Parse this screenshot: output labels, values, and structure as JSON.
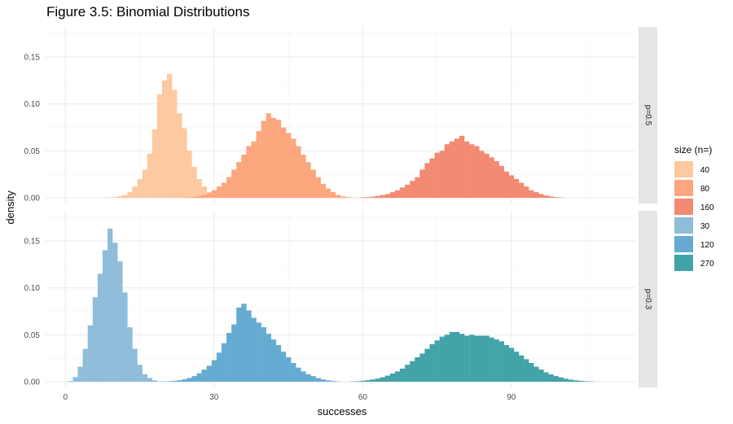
{
  "chart_data": {
    "type": "bar",
    "title": "Figure 3.5: Binomial Distributions",
    "xlabel": "successes",
    "ylabel": "density",
    "xlim": [
      -4,
      115
    ],
    "ylim": [
      -0.006,
      0.182
    ],
    "x_ticks": [
      0,
      30,
      60,
      90
    ],
    "y_ticks": [
      0.0,
      0.05,
      0.1,
      0.15
    ],
    "y_tick_labels": [
      "0.00",
      "0.05",
      "0.10",
      "0.15"
    ],
    "grid": true,
    "legend_title": "size (n=)",
    "legend_position": "right",
    "panels": [
      {
        "label": "p=0.5",
        "series": [
          {
            "name": "40",
            "color": "#FDC9A0",
            "bins": [
              [
                8,
                0.0002
              ],
              [
                9,
                0.0004
              ],
              [
                10,
                0.0008
              ],
              [
                11,
                0.0018
              ],
              [
                12,
                0.003
              ],
              [
                13,
                0.006
              ],
              [
                14,
                0.012
              ],
              [
                15,
                0.02
              ],
              [
                16,
                0.03
              ],
              [
                17,
                0.047
              ],
              [
                18,
                0.073
              ],
              [
                19,
                0.11
              ],
              [
                20,
                0.125
              ],
              [
                21,
                0.132
              ],
              [
                22,
                0.115
              ],
              [
                23,
                0.09
              ],
              [
                24,
                0.074
              ],
              [
                25,
                0.05
              ],
              [
                26,
                0.033
              ],
              [
                27,
                0.02
              ],
              [
                28,
                0.012
              ],
              [
                29,
                0.006
              ],
              [
                30,
                0.003
              ],
              [
                31,
                0.0012
              ],
              [
                32,
                0.0004
              ]
            ]
          },
          {
            "name": "80",
            "color": "#FCA67D",
            "bins": [
              [
                24,
                0.0002
              ],
              [
                25,
                0.0005
              ],
              [
                26,
                0.001
              ],
              [
                27,
                0.0018
              ],
              [
                28,
                0.003
              ],
              [
                29,
                0.005
              ],
              [
                30,
                0.008
              ],
              [
                31,
                0.012
              ],
              [
                32,
                0.016
              ],
              [
                33,
                0.022
              ],
              [
                34,
                0.03
              ],
              [
                35,
                0.038
              ],
              [
                36,
                0.046
              ],
              [
                37,
                0.055
              ],
              [
                38,
                0.06
              ],
              [
                39,
                0.071
              ],
              [
                40,
                0.082
              ],
              [
                41,
                0.09
              ],
              [
                42,
                0.085
              ],
              [
                43,
                0.083
              ],
              [
                44,
                0.075
              ],
              [
                45,
                0.069
              ],
              [
                46,
                0.063
              ],
              [
                47,
                0.055
              ],
              [
                48,
                0.046
              ],
              [
                49,
                0.038
              ],
              [
                50,
                0.03
              ],
              [
                51,
                0.022
              ],
              [
                52,
                0.015
              ],
              [
                53,
                0.01
              ],
              [
                54,
                0.006
              ],
              [
                55,
                0.003
              ],
              [
                56,
                0.0015
              ],
              [
                57,
                0.0007
              ],
              [
                58,
                0.0003
              ]
            ]
          },
          {
            "name": "160",
            "color": "#F38A72",
            "bins": [
              [
                60,
                0.0005
              ],
              [
                61,
                0.0008
              ],
              [
                62,
                0.0012
              ],
              [
                63,
                0.002
              ],
              [
                64,
                0.003
              ],
              [
                65,
                0.004
              ],
              [
                66,
                0.006
              ],
              [
                67,
                0.008
              ],
              [
                68,
                0.011
              ],
              [
                69,
                0.014
              ],
              [
                70,
                0.018
              ],
              [
                71,
                0.022
              ],
              [
                72,
                0.03
              ],
              [
                73,
                0.037
              ],
              [
                74,
                0.042
              ],
              [
                75,
                0.048
              ],
              [
                76,
                0.05
              ],
              [
                77,
                0.057
              ],
              [
                78,
                0.06
              ],
              [
                79,
                0.063
              ],
              [
                80,
                0.066
              ],
              [
                81,
                0.06
              ],
              [
                82,
                0.057
              ],
              [
                83,
                0.055
              ],
              [
                84,
                0.05
              ],
              [
                85,
                0.047
              ],
              [
                86,
                0.043
              ],
              [
                87,
                0.039
              ],
              [
                88,
                0.034
              ],
              [
                89,
                0.028
              ],
              [
                90,
                0.024
              ],
              [
                91,
                0.02
              ],
              [
                92,
                0.016
              ],
              [
                93,
                0.012
              ],
              [
                94,
                0.008
              ],
              [
                95,
                0.006
              ],
              [
                96,
                0.004
              ],
              [
                97,
                0.0025
              ],
              [
                98,
                0.0015
              ],
              [
                99,
                0.0008
              ],
              [
                100,
                0.0005
              ]
            ]
          }
        ]
      },
      {
        "label": "p=0.3",
        "series": [
          {
            "name": "30",
            "color": "#8FBDDA",
            "bins": [
              [
                1,
                0.0008
              ],
              [
                2,
                0.005
              ],
              [
                3,
                0.016
              ],
              [
                4,
                0.035
              ],
              [
                5,
                0.06
              ],
              [
                6,
                0.09
              ],
              [
                7,
                0.115
              ],
              [
                8,
                0.14
              ],
              [
                9,
                0.163
              ],
              [
                10,
                0.148
              ],
              [
                11,
                0.128
              ],
              [
                12,
                0.095
              ],
              [
                13,
                0.058
              ],
              [
                14,
                0.035
              ],
              [
                15,
                0.018
              ],
              [
                16,
                0.008
              ],
              [
                17,
                0.004
              ],
              [
                18,
                0.0015
              ],
              [
                19,
                0.0005
              ]
            ]
          },
          {
            "name": "120",
            "color": "#65ABD1",
            "bins": [
              [
                20,
                0.0003
              ],
              [
                21,
                0.0006
              ],
              [
                22,
                0.001
              ],
              [
                23,
                0.0016
              ],
              [
                24,
                0.0025
              ],
              [
                25,
                0.004
              ],
              [
                26,
                0.006
              ],
              [
                27,
                0.009
              ],
              [
                28,
                0.013
              ],
              [
                29,
                0.017
              ],
              [
                30,
                0.023
              ],
              [
                31,
                0.031
              ],
              [
                32,
                0.041
              ],
              [
                33,
                0.052
              ],
              [
                34,
                0.061
              ],
              [
                35,
                0.079
              ],
              [
                36,
                0.083
              ],
              [
                37,
                0.076
              ],
              [
                38,
                0.068
              ],
              [
                39,
                0.063
              ],
              [
                40,
                0.058
              ],
              [
                41,
                0.051
              ],
              [
                42,
                0.045
              ],
              [
                43,
                0.039
              ],
              [
                44,
                0.032
              ],
              [
                45,
                0.026
              ],
              [
                46,
                0.02
              ],
              [
                47,
                0.015
              ],
              [
                48,
                0.011
              ],
              [
                49,
                0.008
              ],
              [
                50,
                0.006
              ],
              [
                51,
                0.004
              ],
              [
                52,
                0.0025
              ],
              [
                53,
                0.0015
              ],
              [
                54,
                0.0008
              ],
              [
                55,
                0.0004
              ]
            ]
          },
          {
            "name": "270",
            "color": "#42A3A9",
            "bins": [
              [
                58,
                0.0003
              ],
              [
                59,
                0.0006
              ],
              [
                60,
                0.001
              ],
              [
                61,
                0.0016
              ],
              [
                62,
                0.0024
              ],
              [
                63,
                0.0034
              ],
              [
                64,
                0.0047
              ],
              [
                65,
                0.0065
              ],
              [
                66,
                0.0088
              ],
              [
                67,
                0.011
              ],
              [
                68,
                0.014
              ],
              [
                69,
                0.018
              ],
              [
                70,
                0.022
              ],
              [
                71,
                0.026
              ],
              [
                72,
                0.03
              ],
              [
                73,
                0.035
              ],
              [
                74,
                0.04
              ],
              [
                75,
                0.044
              ],
              [
                76,
                0.048
              ],
              [
                77,
                0.05
              ],
              [
                78,
                0.053
              ],
              [
                79,
                0.053
              ],
              [
                80,
                0.051
              ],
              [
                81,
                0.049
              ],
              [
                82,
                0.05
              ],
              [
                83,
                0.049
              ],
              [
                84,
                0.049
              ],
              [
                85,
                0.049
              ],
              [
                86,
                0.047
              ],
              [
                87,
                0.045
              ],
              [
                88,
                0.043
              ],
              [
                89,
                0.039
              ],
              [
                90,
                0.036
              ],
              [
                91,
                0.032
              ],
              [
                92,
                0.028
              ],
              [
                93,
                0.024
              ],
              [
                94,
                0.02
              ],
              [
                95,
                0.016
              ],
              [
                96,
                0.013
              ],
              [
                97,
                0.01
              ],
              [
                98,
                0.0078
              ],
              [
                99,
                0.006
              ],
              [
                100,
                0.0045
              ],
              [
                101,
                0.0032
              ],
              [
                102,
                0.0022
              ],
              [
                103,
                0.0015
              ],
              [
                104,
                0.001
              ],
              [
                105,
                0.0006
              ],
              [
                106,
                0.0004
              ]
            ]
          }
        ]
      }
    ]
  }
}
